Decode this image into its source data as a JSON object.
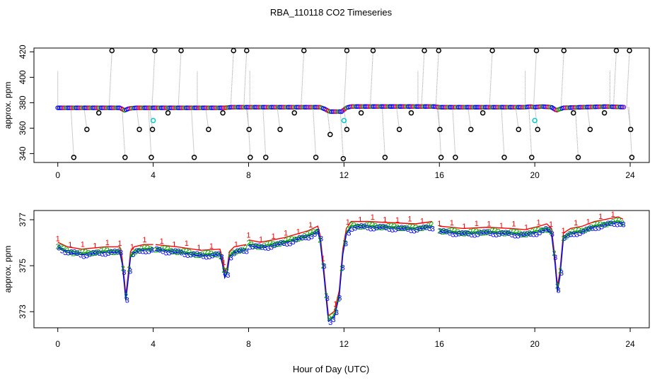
{
  "title": "RBA_110118  CO2 Timeseries",
  "xlabel": "Hour of Day (UTC)",
  "colors": {
    "black": "#000000",
    "gray": "#999999",
    "blue": "#0000ff",
    "red": "#ff0000",
    "green": "#00aa00",
    "cyan": "#00cccc",
    "purple": "#8800cc"
  },
  "chart_data": [
    {
      "type": "scatter",
      "name": "top-panel",
      "ylabel": "approx. ppm",
      "xlim": [
        -1,
        24.8
      ],
      "ylim": [
        333,
        423
      ],
      "xticks": [
        0,
        4,
        8,
        12,
        16,
        20,
        24
      ],
      "yticks": [
        340,
        360,
        380,
        400,
        420
      ],
      "baseline": [
        [
          0,
          376
        ],
        [
          2.6,
          376
        ],
        [
          2.8,
          374
        ],
        [
          3.0,
          375.5
        ],
        [
          3.3,
          376
        ],
        [
          7.0,
          376
        ],
        [
          7.3,
          376.5
        ],
        [
          8,
          376.5
        ],
        [
          9,
          376.5
        ],
        [
          11.0,
          376.5
        ],
        [
          11.2,
          375
        ],
        [
          11.4,
          373
        ],
        [
          11.9,
          373
        ],
        [
          12.1,
          376
        ],
        [
          12.3,
          377
        ],
        [
          15.8,
          377
        ],
        [
          16,
          376.5
        ],
        [
          19.6,
          376.5
        ],
        [
          19.8,
          377
        ],
        [
          20.0,
          376.5
        ],
        [
          20.3,
          377
        ],
        [
          20.7,
          376.5
        ],
        [
          20.9,
          374
        ],
        [
          21.2,
          376
        ],
        [
          22.0,
          376.5
        ],
        [
          23.0,
          377
        ],
        [
          23.8,
          376.5
        ]
      ],
      "spikes_high": [
        [
          2.15,
          421
        ],
        [
          3.95,
          421
        ],
        [
          5.05,
          421
        ],
        [
          7.25,
          421
        ],
        [
          7.8,
          421
        ],
        [
          10.2,
          421
        ],
        [
          12.0,
          421
        ],
        [
          13.1,
          421
        ],
        [
          15.25,
          421
        ],
        [
          15.85,
          421
        ],
        [
          18.1,
          421
        ],
        [
          19.95,
          421
        ],
        [
          21.1,
          421
        ],
        [
          23.3,
          421
        ],
        [
          23.85,
          421
        ]
      ],
      "spikes_low": [
        [
          0.55,
          337
        ],
        [
          2.7,
          337
        ],
        [
          3.8,
          337
        ],
        [
          5.6,
          337
        ],
        [
          7.95,
          337
        ],
        [
          8.6,
          337
        ],
        [
          10.7,
          337
        ],
        [
          11.85,
          336
        ],
        [
          13.6,
          337
        ],
        [
          15.95,
          337
        ],
        [
          16.55,
          337
        ],
        [
          18.6,
          337
        ],
        [
          19.75,
          337
        ],
        [
          21.7,
          337
        ],
        [
          23.95,
          337
        ]
      ],
      "spikes_mid": [
        [
          1.1,
          359
        ],
        [
          3.3,
          359
        ],
        [
          3.85,
          359
        ],
        [
          6.2,
          359
        ],
        [
          7.9,
          359
        ],
        [
          9.2,
          359
        ],
        [
          11.3,
          355
        ],
        [
          12.0,
          359
        ],
        [
          14.2,
          359
        ],
        [
          15.9,
          359
        ],
        [
          17.2,
          359
        ],
        [
          19.2,
          359
        ],
        [
          20.0,
          359
        ],
        [
          22.2,
          359
        ],
        [
          23.9,
          359
        ]
      ],
      "spikes_near": [
        [
          1.6,
          372
        ],
        [
          4.5,
          372
        ],
        [
          6.8,
          372
        ],
        [
          9.8,
          372
        ],
        [
          12.6,
          372
        ],
        [
          14.7,
          372
        ],
        [
          17.7,
          372
        ],
        [
          21.5,
          372
        ],
        [
          22.8,
          372
        ]
      ],
      "cyan_points": [
        [
          4.0,
          366
        ],
        [
          12.0,
          366
        ],
        [
          20.0,
          366
        ]
      ]
    },
    {
      "type": "line",
      "name": "bottom-panel",
      "ylabel": "approx. ppm",
      "xlim": [
        -1,
        24.8
      ],
      "ylim": [
        372.3,
        377.4
      ],
      "xticks": [
        0,
        4,
        8,
        12,
        16,
        20,
        24
      ],
      "yticks": [
        373,
        375,
        377
      ],
      "series_labels": [
        "1",
        "2",
        "3"
      ],
      "segments": [
        [
          [
            0,
            375.9
          ],
          [
            0.4,
            375.7
          ],
          [
            1.0,
            375.6
          ],
          [
            2.0,
            375.7
          ],
          [
            2.6,
            375.7
          ],
          [
            2.7,
            375.2
          ],
          [
            2.8,
            374.2
          ],
          [
            2.85,
            373.6
          ],
          [
            2.95,
            374.5
          ],
          [
            3.05,
            375.5
          ],
          [
            3.2,
            375.7
          ],
          [
            3.6,
            375.8
          ],
          [
            4.0,
            375.8
          ]
        ],
        [
          [
            4.1,
            375.8
          ],
          [
            5.0,
            375.7
          ],
          [
            6.0,
            375.55
          ],
          [
            6.8,
            375.6
          ],
          [
            6.9,
            375.2
          ],
          [
            7.0,
            374.6
          ],
          [
            7.1,
            374.8
          ],
          [
            7.2,
            375.5
          ],
          [
            7.4,
            375.7
          ],
          [
            7.9,
            375.8
          ]
        ],
        [
          [
            8.0,
            376.0
          ],
          [
            8.5,
            375.9
          ],
          [
            9.5,
            376.1
          ],
          [
            10.5,
            376.4
          ],
          [
            10.9,
            376.6
          ],
          [
            11.0,
            376.2
          ],
          [
            11.15,
            374.8
          ],
          [
            11.3,
            373.2
          ],
          [
            11.35,
            372.7
          ],
          [
            11.6,
            372.9
          ],
          [
            11.8,
            373.8
          ],
          [
            11.95,
            375.6
          ],
          [
            12.1,
            376.5
          ],
          [
            12.3,
            376.8
          ],
          [
            13,
            376.8
          ],
          [
            14,
            376.75
          ],
          [
            15,
            376.7
          ],
          [
            15.7,
            376.8
          ]
        ],
        [
          [
            16.0,
            376.6
          ],
          [
            17.0,
            376.5
          ],
          [
            18.0,
            376.55
          ],
          [
            19.0,
            376.5
          ],
          [
            19.6,
            376.45
          ],
          [
            19.8,
            376.5
          ],
          [
            20.2,
            376.6
          ],
          [
            20.5,
            376.7
          ],
          [
            20.7,
            376.5
          ],
          [
            20.85,
            375.2
          ],
          [
            20.95,
            374.0
          ],
          [
            21.05,
            374.6
          ],
          [
            21.2,
            376.3
          ],
          [
            21.5,
            376.5
          ],
          [
            22.0,
            376.6
          ],
          [
            22.5,
            376.8
          ],
          [
            23.0,
            376.9
          ],
          [
            23.5,
            377.0
          ],
          [
            23.7,
            376.9
          ]
        ]
      ]
    }
  ]
}
